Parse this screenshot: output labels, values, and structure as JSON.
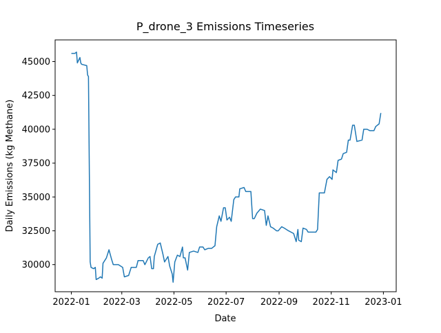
{
  "chart_data": {
    "type": "line",
    "title": "P_drone_3 Emissions Timeseries",
    "x_label": "Date",
    "y_label": "Daily Emissions (kg Methane)",
    "x": [
      0,
      4,
      6,
      7,
      10,
      11,
      12,
      18,
      19,
      20,
      22,
      23,
      26,
      28,
      29,
      32,
      34,
      36,
      37,
      41,
      44,
      47,
      49,
      55,
      60,
      62,
      67,
      70,
      76,
      78,
      84,
      86,
      90,
      92,
      94,
      96,
      97,
      101,
      104,
      107,
      109,
      113,
      115,
      118,
      119,
      121,
      124,
      127,
      130,
      131,
      133,
      136,
      138,
      143,
      148,
      150,
      154,
      156,
      160,
      164,
      168,
      170,
      173,
      175,
      178,
      180,
      182,
      185,
      187,
      190,
      192,
      196,
      197,
      202,
      204,
      210,
      212,
      214,
      217,
      221,
      226,
      228,
      230,
      233,
      236,
      240,
      242,
      246,
      249,
      254,
      260,
      263,
      265,
      266,
      269,
      271,
      275,
      277,
      286,
      288,
      290,
      296,
      299,
      302,
      305,
      306,
      310,
      312,
      316,
      318,
      322,
      324,
      326,
      329,
      331,
      334,
      340,
      342,
      346,
      349,
      354,
      356,
      360,
      362
    ],
    "series": [
      {
        "color": "#1f77b4",
        "values": [
          45600,
          45600,
          45700,
          44900,
          45300,
          44900,
          44800,
          44700,
          44000,
          43900,
          30200,
          29800,
          29700,
          29800,
          28900,
          29000,
          29100,
          29000,
          30100,
          30500,
          31100,
          30400,
          30000,
          30000,
          29800,
          29100,
          29200,
          29800,
          29800,
          30300,
          30300,
          30000,
          30500,
          30600,
          29700,
          29700,
          30600,
          31500,
          31600,
          30800,
          30200,
          30600,
          29900,
          29300,
          28700,
          30200,
          30700,
          30600,
          31300,
          30500,
          30500,
          29600,
          30900,
          31000,
          30900,
          31300,
          31300,
          31100,
          31200,
          31200,
          31400,
          32800,
          33600,
          33200,
          34200,
          34200,
          33300,
          33500,
          33200,
          34800,
          35000,
          35000,
          35600,
          35700,
          35400,
          35400,
          33400,
          33400,
          33800,
          34100,
          34000,
          32900,
          33600,
          32800,
          32700,
          32500,
          32500,
          32800,
          32700,
          32500,
          32300,
          31700,
          32600,
          31800,
          31700,
          32700,
          32600,
          32400,
          32400,
          32600,
          35300,
          35300,
          36300,
          36500,
          36300,
          37000,
          36800,
          37700,
          37800,
          38200,
          38300,
          39200,
          39200,
          40300,
          40300,
          39100,
          39200,
          40000,
          40000,
          39900,
          39900,
          40200,
          40400,
          41200
        ]
      }
    ],
    "xlim": [
      -19,
      380
    ],
    "xticks": [
      {
        "value": 0,
        "label": "2022-01"
      },
      {
        "value": 59,
        "label": "2022-03"
      },
      {
        "value": 120,
        "label": "2022-05"
      },
      {
        "value": 181,
        "label": "2022-07"
      },
      {
        "value": 243,
        "label": "2022-09"
      },
      {
        "value": 304,
        "label": "2022-11"
      },
      {
        "value": 365,
        "label": "2023-01"
      }
    ],
    "ylim": [
      28000,
      46600
    ],
    "yticks": [
      30000,
      32500,
      35000,
      37500,
      40000,
      42500,
      45000
    ],
    "grid": false
  }
}
